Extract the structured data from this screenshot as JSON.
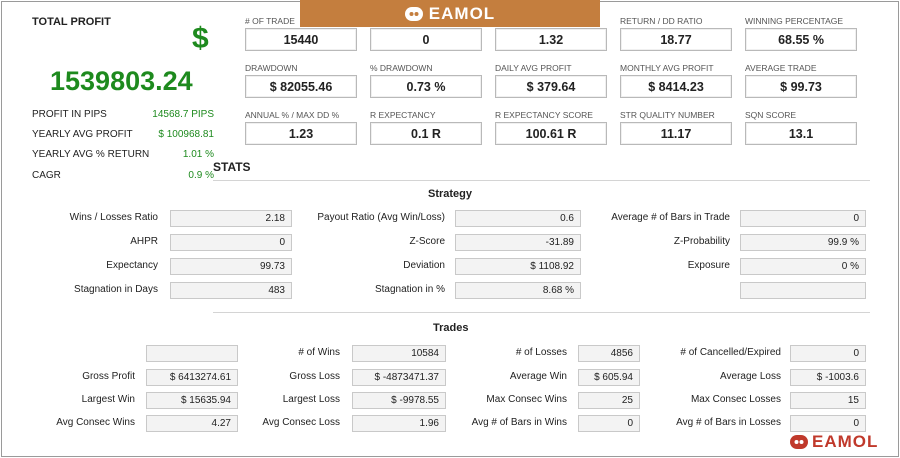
{
  "summary": {
    "title": "TOTAL PROFIT",
    "currency": "$",
    "total_profit": "1539803.24",
    "rows": [
      {
        "label": "PROFIT IN PIPS",
        "value": "14568.7 PIPS"
      },
      {
        "label": "YEARLY AVG PROFIT",
        "value": "$ 100968.81"
      },
      {
        "label": "YEARLY AVG % RETURN",
        "value": "1.01 %"
      },
      {
        "label": "CAGR",
        "value": "0.9 %"
      }
    ]
  },
  "metrics": [
    {
      "label": "# OF TRADE",
      "value": "15440"
    },
    {
      "label": "",
      "value": "0"
    },
    {
      "label": "",
      "value": "1.32"
    },
    {
      "label": "RETURN / DD RATIO",
      "value": "18.77"
    },
    {
      "label": "WINNING PERCENTAGE",
      "value": "68.55 %"
    },
    {
      "label": "DRAWDOWN",
      "value": "$ 82055.46"
    },
    {
      "label": "% DRAWDOWN",
      "value": "0.73 %"
    },
    {
      "label": "DAILY AVG PROFIT",
      "value": "$ 379.64"
    },
    {
      "label": "MONTHLY AVG PROFIT",
      "value": "$ 8414.23"
    },
    {
      "label": "AVERAGE TRADE",
      "value": "$ 99.73"
    },
    {
      "label": "ANNUAL % / MAX DD %",
      "value": "1.23"
    },
    {
      "label": "R EXPECTANCY",
      "value": "0.1 R"
    },
    {
      "label": "R EXPECTANCY SCORE",
      "value": "100.61 R"
    },
    {
      "label": "STR QUALITY NUMBER",
      "value": "11.17"
    },
    {
      "label": "SQN SCORE",
      "value": "13.1"
    }
  ],
  "stats_title": "STATS",
  "strategy": {
    "title": "Strategy",
    "rows": [
      [
        {
          "label": "Wins / Losses Ratio",
          "value": "2.18"
        },
        {
          "label": "Payout Ratio (Avg Win/Loss)",
          "value": "0.6"
        },
        {
          "label": "Average # of Bars in Trade",
          "value": "0"
        }
      ],
      [
        {
          "label": "AHPR",
          "value": "0"
        },
        {
          "label": "Z-Score",
          "value": "-31.89"
        },
        {
          "label": "Z-Probability",
          "value": "99.9 %"
        }
      ],
      [
        {
          "label": "Expectancy",
          "value": "99.73"
        },
        {
          "label": "Deviation",
          "value": "$ 1108.92"
        },
        {
          "label": "Exposure",
          "value": "0 %"
        }
      ],
      [
        {
          "label": "Stagnation in Days",
          "value": "483"
        },
        {
          "label": "Stagnation in %",
          "value": "8.68 %"
        },
        {
          "label": "",
          "value": ""
        }
      ]
    ]
  },
  "trades": {
    "title": "Trades",
    "rows": [
      [
        {
          "label": "",
          "value": ""
        },
        {
          "label": "# of Wins",
          "value": "10584"
        },
        {
          "label": "# of Losses",
          "value": "4856"
        },
        {
          "label": "# of Cancelled/Expired",
          "value": "0"
        }
      ],
      [
        {
          "label": "Gross Profit",
          "value": "$ 6413274.61"
        },
        {
          "label": "Gross Loss",
          "value": "$ -4873471.37"
        },
        {
          "label": "Average Win",
          "value": "$ 605.94"
        },
        {
          "label": "Average Loss",
          "value": "$ -1003.6"
        }
      ],
      [
        {
          "label": "Largest Win",
          "value": "$ 15635.94"
        },
        {
          "label": "Largest Loss",
          "value": "$ -9978.55"
        },
        {
          "label": "Max Consec Wins",
          "value": "25"
        },
        {
          "label": "Max Consec Losses",
          "value": "15"
        }
      ],
      [
        {
          "label": "Avg Consec Wins",
          "value": "4.27"
        },
        {
          "label": "Avg Consec Loss",
          "value": "1.96"
        },
        {
          "label": "Avg # of Bars in Wins",
          "value": "0"
        },
        {
          "label": "Avg # of Bars in Losses",
          "value": "0"
        }
      ]
    ]
  },
  "branding": {
    "logo_text": "EAMOL",
    "logo_icon": "robot-icon",
    "banner_color": "#c47e3e",
    "logo_color": "#c0392b"
  },
  "colors": {
    "profit_green": "#1e8a1e"
  }
}
